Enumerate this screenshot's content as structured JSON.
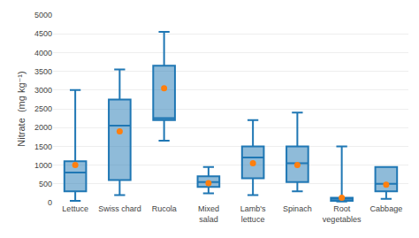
{
  "chart_data": {
    "type": "box",
    "ylabel": "Nitrate  (mg kg⁻¹)",
    "categories": [
      "Lettuce",
      "Swiss chard",
      "Rucola",
      "Mixed\nsalad",
      "Lamb's\nlettuce",
      "Spinach",
      "Root\nvegetables",
      "Cabbage"
    ],
    "boxes": [
      {
        "q1": 300,
        "median": 800,
        "q3": 1100,
        "whislo": 50,
        "whishi": 3000,
        "mean": 1000
      },
      {
        "q1": 600,
        "median": 2050,
        "q3": 2750,
        "whislo": 200,
        "whishi": 3550,
        "mean": 1900
      },
      {
        "q1": 2200,
        "median": 2250,
        "q3": 3650,
        "whislo": 1650,
        "whishi": 4550,
        "mean": 3050
      },
      {
        "q1": 420,
        "median": 550,
        "q3": 700,
        "whislo": 250,
        "whishi": 950,
        "mean": 520
      },
      {
        "q1": 650,
        "median": 1200,
        "q3": 1500,
        "whislo": 200,
        "whishi": 2200,
        "mean": 1050
      },
      {
        "q1": 550,
        "median": 1050,
        "q3": 1500,
        "whislo": 300,
        "whishi": 2400,
        "mean": 1000
      },
      {
        "q1": 50,
        "median": 100,
        "q3": 130,
        "whislo": 30,
        "whishi": 1500,
        "mean": 130
      },
      {
        "q1": 300,
        "median": 500,
        "q3": 950,
        "whislo": 100,
        "whishi": 950,
        "mean": 480
      }
    ],
    "ylim": [
      0,
      5000
    ],
    "yticks": [
      0,
      500,
      1000,
      1500,
      2000,
      2500,
      3000,
      3500,
      4000,
      4500,
      5000
    ],
    "grid": true,
    "marker": "circle"
  }
}
